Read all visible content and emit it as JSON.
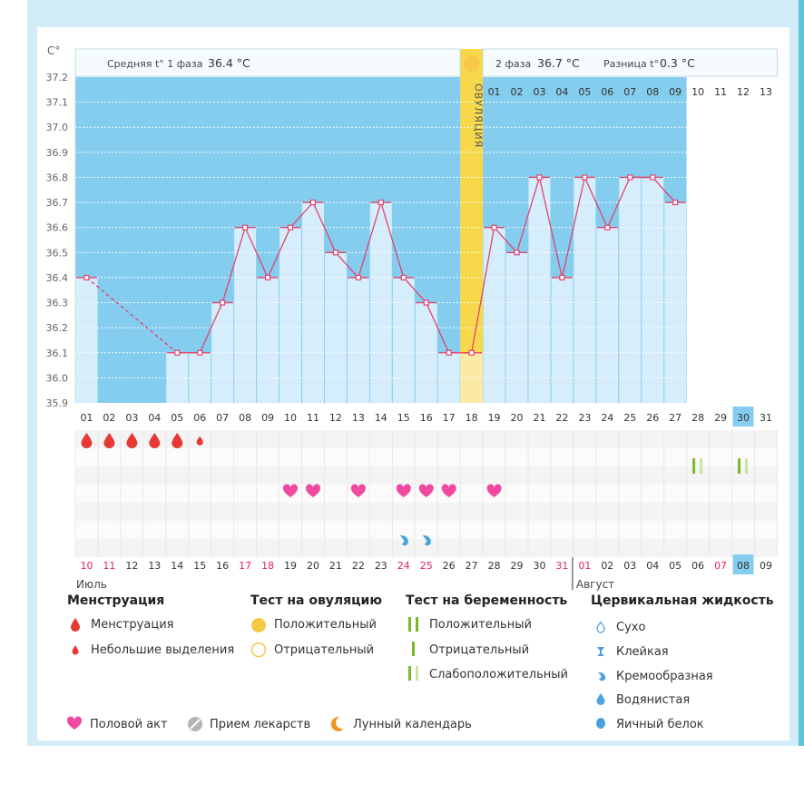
{
  "chart_data": {
    "type": "line",
    "y_unit": "C°",
    "ylim": [
      35.9,
      37.2
    ],
    "y_ticks": [
      "37.2",
      "37.1",
      "37.0",
      "36.9",
      "36.8",
      "36.7",
      "36.6",
      "36.5",
      "36.4",
      "36.3",
      "36.2",
      "36.1",
      "36.0",
      "35.9"
    ],
    "cycle_days": [
      "01",
      "02",
      "03",
      "04",
      "05",
      "06",
      "07",
      "08",
      "09",
      "10",
      "11",
      "12",
      "13",
      "14",
      "15",
      "16",
      "17",
      "18",
      "19",
      "20",
      "21",
      "22",
      "23",
      "24",
      "25",
      "26",
      "27",
      "28",
      "29",
      "30",
      "31"
    ],
    "today_cycle_day": 30,
    "temperatures": [
      36.4,
      null,
      null,
      null,
      36.1,
      36.1,
      36.3,
      36.6,
      36.4,
      36.6,
      36.7,
      36.5,
      36.4,
      36.7,
      36.4,
      36.3,
      36.1,
      36.1,
      36.6,
      36.5,
      36.8,
      36.4,
      36.8,
      36.6,
      36.8,
      36.8,
      36.7,
      null,
      null,
      null,
      null
    ],
    "phase1_label": "Средняя t° 1 фаза",
    "phase1_value": "36.4 °C",
    "phase2_label": "2 фаза",
    "phase2_value": "36.7 °C",
    "diff_label": "Разница t°",
    "diff_value": "0.3 °C",
    "ovulation_label": "ОВУЛЯЦИЯ",
    "ovulation_day": 18,
    "phase2_days": [
      "01",
      "02",
      "03",
      "04",
      "05",
      "06",
      "07",
      "08",
      "09",
      "10",
      "11",
      "12",
      "13"
    ],
    "menstruation_days": [
      1,
      2,
      3,
      4,
      5
    ],
    "light_spotting_days": [
      6
    ],
    "pregnancy_test_weak_positive_days": [
      28,
      30
    ],
    "intercourse_days": [
      10,
      11,
      13,
      15,
      16,
      17,
      19
    ],
    "creamy_fluid_days": [
      15,
      16
    ],
    "calendar_dates": [
      "10",
      "11",
      "12",
      "13",
      "14",
      "15",
      "16",
      "17",
      "18",
      "19",
      "20",
      "21",
      "22",
      "23",
      "24",
      "25",
      "26",
      "27",
      "28",
      "29",
      "30",
      "31",
      "01",
      "02",
      "03",
      "04",
      "05",
      "06",
      "07",
      "08",
      "09"
    ],
    "red_date_indices": [
      0,
      1,
      7,
      8,
      14,
      15,
      21,
      22,
      28
    ],
    "today_date_index": 29,
    "month_july": "Июль",
    "month_august": "Август"
  },
  "legend": {
    "menstruation": {
      "title": "Менструация",
      "items": [
        "Менструация",
        "Небольшие выделения"
      ]
    },
    "ovulation_test": {
      "title": "Тест на овуляцию",
      "items": [
        "Положительный",
        "Отрицательный"
      ]
    },
    "pregnancy_test": {
      "title": "Тест на беременность",
      "items": [
        "Положительный",
        "Отрицательный",
        "Слабоположительный"
      ]
    },
    "cervical_fluid": {
      "title": "Цервикальная жидкость",
      "items": [
        "Сухо",
        "Клейкая",
        "Кремообразная",
        "Водянистая",
        "Яичный белок"
      ]
    },
    "bottom": [
      "Половой акт",
      "Прием лекарств",
      "Лунный календарь"
    ]
  },
  "colors": {
    "sky": "#85cdef",
    "bar": "#d6eefb",
    "line": "#e0446e",
    "ovulation": "#f7d84b",
    "heart": "#f04aa0",
    "drop": "#e53935",
    "green": "#7ab928",
    "fluid": "#4aa3df",
    "moon": "#f0931f"
  }
}
